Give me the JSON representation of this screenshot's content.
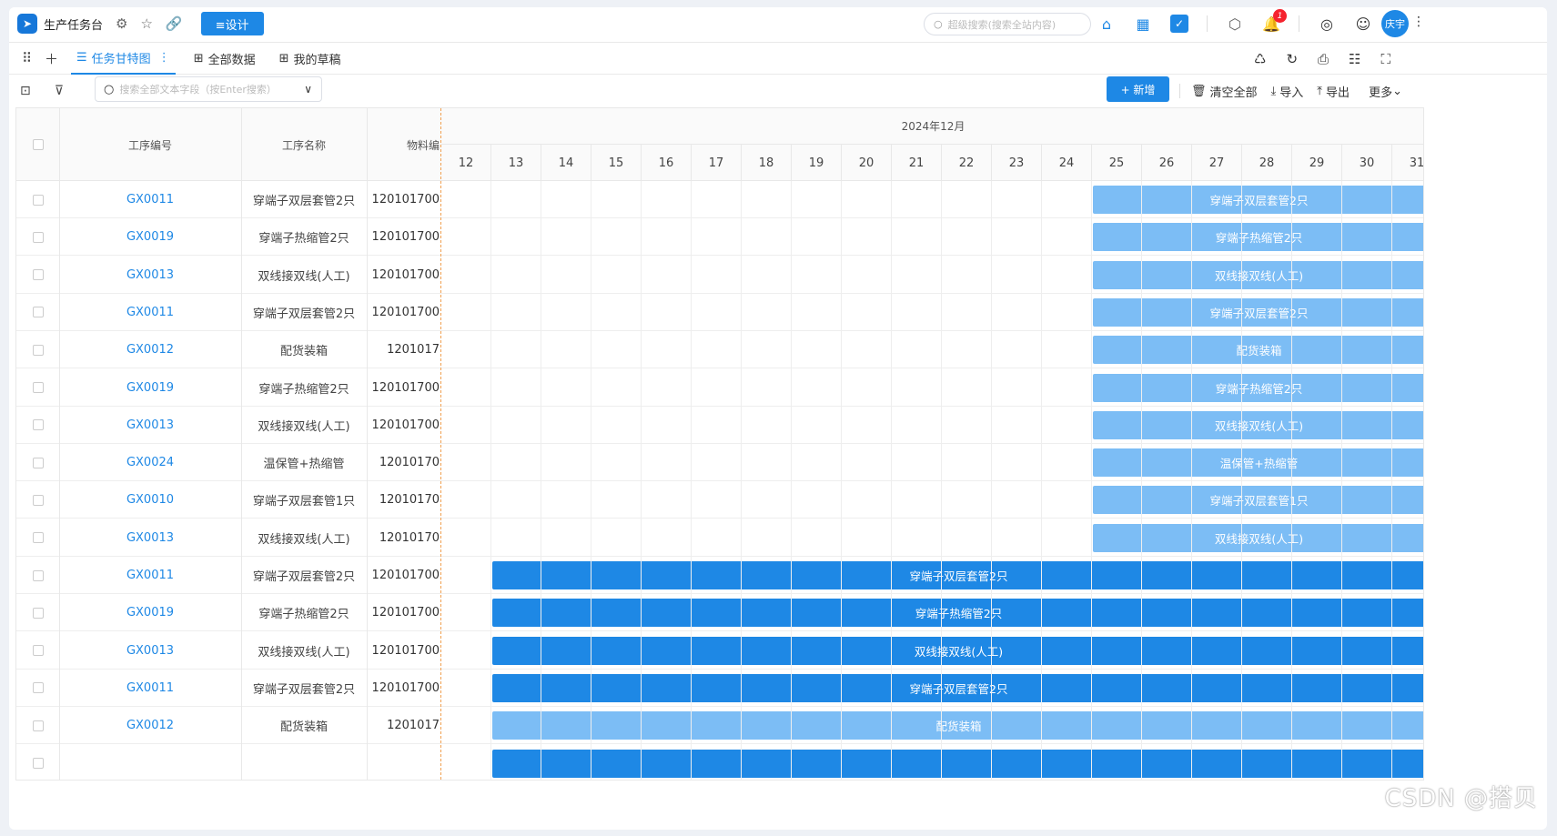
{
  "topbar": {
    "app_title": "生产任务台",
    "design_label": "≡设计",
    "search_placeholder": "超级搜索(搜索全站内容)",
    "notification_count": "1",
    "user_avatar": "庆宇"
  },
  "tabs": [
    {
      "label": "任务甘特图",
      "icon": "list-icon",
      "active": true
    },
    {
      "label": "全部数据",
      "icon": "table-icon",
      "active": false
    },
    {
      "label": "我的草稿",
      "icon": "table-icon",
      "active": false
    }
  ],
  "toolbar": {
    "search_placeholder": "搜索全部文本字段（按Enter搜索）",
    "new_label": "+ 新增",
    "clear_label": "清空全部",
    "import_label": "导入",
    "export_label": "导出",
    "more_label": "更多"
  },
  "table": {
    "headers": {
      "code": "工序编号",
      "name": "工序名称",
      "material": "物料编"
    },
    "month": "2024年12月",
    "days": [
      "12",
      "13",
      "14",
      "15",
      "16",
      "17",
      "18",
      "19",
      "20",
      "21",
      "22",
      "23",
      "24",
      "25",
      "26",
      "27",
      "28",
      "29",
      "30",
      "31"
    ],
    "rows": [
      {
        "code": "GX0011",
        "name": "穿端子双层套管2只",
        "material": "120101700",
        "bar": "穿端子双层套管2只",
        "start_day": 25,
        "tone": "light"
      },
      {
        "code": "GX0019",
        "name": "穿端子热缩管2只",
        "material": "120101700",
        "bar": "穿端子热缩管2只",
        "start_day": 25,
        "tone": "light"
      },
      {
        "code": "GX0013",
        "name": "双线接双线(人工)",
        "material": "120101700",
        "bar": "双线接双线(人工)",
        "start_day": 25,
        "tone": "light"
      },
      {
        "code": "GX0011",
        "name": "穿端子双层套管2只",
        "material": "120101700",
        "bar": "穿端子双层套管2只",
        "start_day": 25,
        "tone": "light"
      },
      {
        "code": "GX0012",
        "name": "配货装箱",
        "material": "1201017",
        "bar": "配货装箱",
        "start_day": 25,
        "tone": "light"
      },
      {
        "code": "GX0019",
        "name": "穿端子热缩管2只",
        "material": "120101700",
        "bar": "穿端子热缩管2只",
        "start_day": 25,
        "tone": "light"
      },
      {
        "code": "GX0013",
        "name": "双线接双线(人工)",
        "material": "120101700",
        "bar": "双线接双线(人工)",
        "start_day": 25,
        "tone": "light"
      },
      {
        "code": "GX0024",
        "name": "温保管+热缩管",
        "material": "12010170",
        "bar": "温保管+热缩管",
        "start_day": 25,
        "tone": "light"
      },
      {
        "code": "GX0010",
        "name": "穿端子双层套管1只",
        "material": "12010170",
        "bar": "穿端子双层套管1只",
        "start_day": 25,
        "tone": "light"
      },
      {
        "code": "GX0013",
        "name": "双线接双线(人工)",
        "material": "12010170",
        "bar": "双线接双线(人工)",
        "start_day": 25,
        "tone": "light"
      },
      {
        "code": "GX0011",
        "name": "穿端子双层套管2只",
        "material": "120101700",
        "bar": "穿端子双层套管2只",
        "start_day": 13,
        "tone": "dark"
      },
      {
        "code": "GX0019",
        "name": "穿端子热缩管2只",
        "material": "120101700",
        "bar": "穿端子热缩管2只",
        "start_day": 13,
        "tone": "dark"
      },
      {
        "code": "GX0013",
        "name": "双线接双线(人工)",
        "material": "120101700",
        "bar": "双线接双线(人工)",
        "start_day": 13,
        "tone": "dark"
      },
      {
        "code": "GX0011",
        "name": "穿端子双层套管2只",
        "material": "120101700",
        "bar": "穿端子双层套管2只",
        "start_day": 13,
        "tone": "dark"
      },
      {
        "code": "GX0012",
        "name": "配货装箱",
        "material": "1201017",
        "bar": "配货装箱",
        "start_day": 13,
        "tone": "light"
      },
      {
        "code": "",
        "name": "",
        "material": "",
        "bar": "",
        "start_day": 13,
        "tone": "dark"
      }
    ]
  },
  "watermark": "CSDN @搭贝"
}
